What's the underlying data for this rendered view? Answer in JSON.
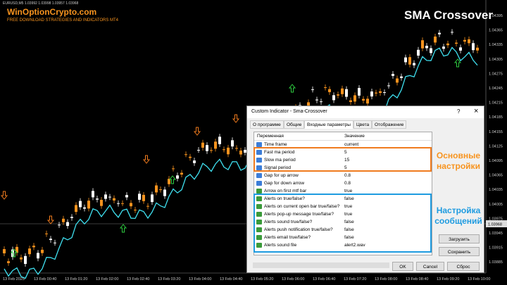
{
  "chart_window": {
    "symbol_info": "EURUSD,M5 1.03992 1.03998 1.03957 1.03968",
    "brand": "WinOptionCrypto.com",
    "tagline": "FREE DOWNLOAD STRATEGIES AND INDICATORS MT4",
    "title": "SMA Crossover",
    "price_labels": [
      "1.04395",
      "1.04365",
      "1.04335",
      "1.04305",
      "1.04275",
      "1.04245",
      "1.04215",
      "1.04185",
      "1.04155",
      "1.04125",
      "1.04095",
      "1.04065",
      "1.04035",
      "1.04005",
      "1.03975",
      "1.03945",
      "1.03915",
      "1.03885"
    ],
    "current_price": "1.03968",
    "time_labels": [
      "13 Feb 2025",
      "13 Feb 00:40",
      "13 Feb 01:20",
      "13 Feb 02:00",
      "13 Feb 02:40",
      "13 Feb 03:20",
      "13 Feb 04:00",
      "13 Feb 04:40",
      "13 Feb 05:20",
      "13 Feb 06:00",
      "13 Feb 06:40",
      "13 Feb 07:20",
      "13 Feb 08:00",
      "13 Feb 08:40",
      "13 Feb 09:20",
      "13 Feb 10:00"
    ]
  },
  "dialog": {
    "title": "Custom Indicator - Sma-Crossover",
    "help": "?",
    "close": "×",
    "tabs": [
      "О программе",
      "Общие",
      "Входные параметры",
      "Цвета",
      "Отображение"
    ],
    "columns": [
      "Переменная",
      "Значение"
    ],
    "rows": [
      [
        "Time frame",
        "current"
      ],
      [
        "Fast ma period",
        "5"
      ],
      [
        "Slow ma period",
        "15"
      ],
      [
        "Signal period",
        "5"
      ],
      [
        "Gap for up arrow",
        "0.8"
      ],
      [
        "Gap for down arrow",
        "0.8"
      ],
      [
        "Arrow on first mtf bar",
        "true"
      ],
      [
        "Alerts on true/false?",
        "false"
      ],
      [
        "Alerts on current open bar true/false?",
        "true"
      ],
      [
        "Alerts pop-up message true/false?",
        "true"
      ],
      [
        "Alerts sound true/false?",
        "false"
      ],
      [
        "Alerts push notification true/false?",
        "false"
      ],
      [
        "Alerts email true/false?",
        "false"
      ],
      [
        "Alerts sound file",
        "alert2.wav"
      ]
    ],
    "side_buttons": [
      "Загрузить",
      "Сохранить"
    ],
    "bottom_buttons": [
      "OK",
      "Cancel",
      "Сброс"
    ]
  },
  "annotations": {
    "main_settings": [
      "Основные",
      "настройки"
    ],
    "alert_settings": [
      "Настройка",
      "сообщений"
    ]
  }
}
